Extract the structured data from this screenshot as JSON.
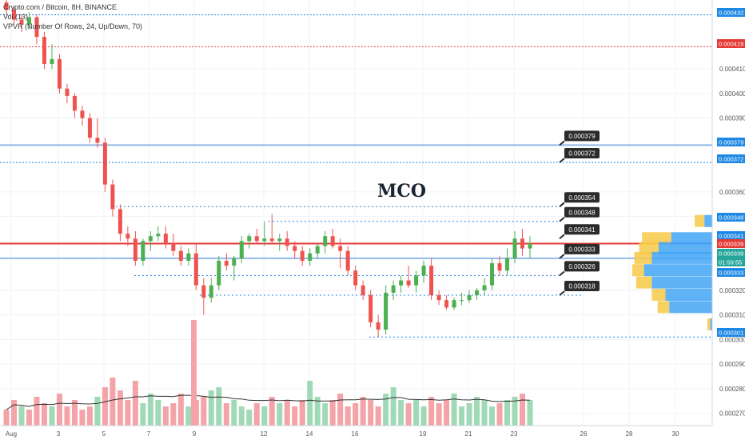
{
  "header": {
    "symbol_line": "Crypto.com / Bitcoin, 8H, BINANCE",
    "vol_line": "Vol (13)",
    "vpvr_line": "VPVR (Number Of Rows, 24, Up/Down, 70)"
  },
  "annotation": "MCO",
  "colors": {
    "up": "#4caf50",
    "down": "#ef5350",
    "vol_up": "#9fd9b5",
    "vol_down": "#f4a3a8",
    "level_blue": "#1e88e5",
    "level_red": "#e53935",
    "vpvr_blue": "#42a5f5",
    "vpvr_yellow": "#f7c948"
  },
  "chart_data": {
    "type": "candlestick",
    "title": "Crypto.com / Bitcoin, 8H, BINANCE",
    "x_tick_labels": [
      "Aug",
      "3",
      "5",
      "7",
      "9",
      "12",
      "14",
      "16",
      "19",
      "21",
      "23",
      "26",
      "28",
      "30"
    ],
    "y_tick_labels": [
      "0.000270",
      "0.000280",
      "0.000290",
      "0.000300",
      "0.000310",
      "0.000320",
      "0.000350",
      "0.000360",
      "0.000390",
      "0.000400",
      "0.000410"
    ],
    "ylim": [
      0.000265,
      0.000438
    ],
    "grid": true,
    "candles": [
      [
        0.000437,
        0.000439,
        0.000432,
        0.000434
      ],
      [
        0.000434,
        0.000435,
        0.000428,
        0.00043
      ],
      [
        0.00043,
        0.000432,
        0.000425,
        0.000428
      ],
      [
        0.000428,
        0.000433,
        0.000426,
        0.000431
      ],
      [
        0.000431,
        0.000432,
        0.00042,
        0.000423
      ],
      [
        0.000423,
        0.000425,
        0.00041,
        0.000412
      ],
      [
        0.000412,
        0.00042,
        0.00041,
        0.000414
      ],
      [
        0.000414,
        0.000416,
        0.0004,
        0.000402
      ],
      [
        0.000402,
        0.000404,
        0.000396,
        0.000399
      ],
      [
        0.000399,
        0.0004,
        0.00039,
        0.000393
      ],
      [
        0.000393,
        0.000395,
        0.000387,
        0.00039
      ],
      [
        0.00039,
        0.000392,
        0.00038,
        0.000382
      ],
      [
        0.000382,
        0.00039,
        0.000378,
        0.00038
      ],
      [
        0.00038,
        0.000382,
        0.00036,
        0.000363
      ],
      [
        0.000363,
        0.000365,
        0.00035,
        0.000353
      ],
      [
        0.000353,
        0.000355,
        0.00034,
        0.000343
      ],
      [
        0.000343,
        0.000346,
        0.000338,
        0.000341
      ],
      [
        0.000341,
        0.000344,
        0.00033,
        0.000332
      ],
      [
        0.000332,
        0.000341,
        0.00033,
        0.00034
      ],
      [
        0.00034,
        0.000344,
        0.000336,
        0.000342
      ],
      [
        0.000342,
        0.000346,
        0.00034,
        0.000343
      ],
      [
        0.000343,
        0.000346,
        0.000337,
        0.000339
      ],
      [
        0.000339,
        0.000343,
        0.000334,
        0.000336
      ],
      [
        0.000336,
        0.000338,
        0.00033,
        0.000332
      ],
      [
        0.000332,
        0.000337,
        0.00033,
        0.000335
      ],
      [
        0.000335,
        0.000339,
        0.00032,
        0.000322
      ],
      [
        0.000322,
        0.000325,
        0.00031,
        0.000317
      ],
      [
        0.000317,
        0.000325,
        0.000315,
        0.000322
      ],
      [
        0.000322,
        0.000334,
        0.00032,
        0.000332
      ],
      [
        0.000332,
        0.000335,
        0.000328,
        0.00033
      ],
      [
        0.00033,
        0.000334,
        0.000324,
        0.000333
      ],
      [
        0.000333,
        0.000342,
        0.000331,
        0.00034
      ],
      [
        0.00034,
        0.000343,
        0.000337,
        0.000342
      ],
      [
        0.000342,
        0.000345,
        0.000339,
        0.00034
      ],
      [
        0.00034,
        0.000348,
        0.000338,
        0.000341
      ],
      [
        0.000341,
        0.000351,
        0.000339,
        0.00034
      ],
      [
        0.00034,
        0.000343,
        0.000336,
        0.000341
      ],
      [
        0.000341,
        0.000344,
        0.000336,
        0.000338
      ],
      [
        0.000338,
        0.00034,
        0.000333,
        0.000336
      ],
      [
        0.000336,
        0.000338,
        0.00033,
        0.000332
      ],
      [
        0.000332,
        0.000337,
        0.00033,
        0.000335
      ],
      [
        0.000335,
        0.000339,
        0.000333,
        0.000338
      ],
      [
        0.000338,
        0.000344,
        0.000335,
        0.000342
      ],
      [
        0.000342,
        0.000345,
        0.000337,
        0.000338
      ],
      [
        0.000338,
        0.000341,
        0.000329,
        0.000336
      ],
      [
        0.000336,
        0.000338,
        0.000326,
        0.000328
      ],
      [
        0.000328,
        0.00033,
        0.00032,
        0.000322
      ],
      [
        0.000322,
        0.000324,
        0.000316,
        0.000318
      ],
      [
        0.000318,
        0.00032,
        0.000305,
        0.000307
      ],
      [
        0.000307,
        0.00031,
        0.000301,
        0.000304
      ],
      [
        0.000304,
        0.000322,
        0.000302,
        0.000319
      ],
      [
        0.000319,
        0.000324,
        0.000316,
        0.000322
      ],
      [
        0.000322,
        0.000326,
        0.000319,
        0.000324
      ],
      [
        0.000324,
        0.00033,
        0.000321,
        0.000322
      ],
      [
        0.000322,
        0.000328,
        0.000319,
        0.000326
      ],
      [
        0.000326,
        0.000332,
        0.000323,
        0.00033
      ],
      [
        0.00033,
        0.000333,
        0.000316,
        0.000318
      ],
      [
        0.000318,
        0.00032,
        0.000314,
        0.000316
      ],
      [
        0.000316,
        0.000318,
        0.000312,
        0.000313
      ],
      [
        0.000313,
        0.000317,
        0.000312,
        0.000316
      ],
      [
        0.000316,
        0.000319,
        0.000314,
        0.000316
      ],
      [
        0.000316,
        0.00032,
        0.000315,
        0.000318
      ],
      [
        0.000318,
        0.000321,
        0.000316,
        0.00032
      ],
      [
        0.00032,
        0.000325,
        0.000318,
        0.000322
      ],
      [
        0.000322,
        0.000333,
        0.00032,
        0.000331
      ],
      [
        0.000331,
        0.000334,
        0.000326,
        0.000328
      ],
      [
        0.000328,
        0.000337,
        0.000326,
        0.000333
      ],
      [
        0.000333,
        0.000344,
        0.000331,
        0.000341
      ],
      [
        0.000341,
        0.000345,
        0.000334,
        0.000337
      ],
      [
        0.000337,
        0.000342,
        0.000333,
        0.000339
      ]
    ],
    "volumes": [
      5,
      8,
      6,
      5,
      9,
      7,
      6,
      10,
      6,
      8,
      5,
      6,
      9,
      12,
      15,
      11,
      8,
      14,
      7,
      10,
      8,
      6,
      7,
      10,
      6,
      8,
      9,
      11,
      12,
      7,
      8,
      6,
      5,
      7,
      6,
      9,
      7,
      8,
      6,
      8,
      14,
      9,
      7,
      8,
      10,
      6,
      7,
      9,
      8,
      6,
      10,
      12,
      8,
      7,
      8,
      6,
      9,
      7,
      8,
      10,
      6,
      7,
      9,
      8,
      6,
      7,
      8,
      9,
      10,
      8
    ],
    "volume_up": [
      false,
      false,
      true,
      false,
      false,
      false,
      true,
      false,
      false,
      false,
      false,
      false,
      true,
      false,
      false,
      false,
      false,
      false,
      true,
      true,
      true,
      false,
      false,
      false,
      true,
      false,
      false,
      true,
      true,
      false,
      true,
      true,
      true,
      false,
      true,
      false,
      true,
      false,
      false,
      false,
      true,
      true,
      true,
      false,
      false,
      false,
      false,
      false,
      false,
      false,
      true,
      true,
      true,
      false,
      true,
      true,
      false,
      false,
      false,
      true,
      true,
      true,
      true,
      true,
      true,
      false,
      true,
      true,
      false,
      true
    ],
    "price_labels": [
      "0.000379",
      "0.000372",
      "0.000354",
      "0.000348",
      "0.000341",
      "0.000333",
      "0.000326",
      "0.000318"
    ],
    "axis_badges": [
      {
        "text": "0.000432",
        "color": "#1e88e5"
      },
      {
        "text": "0.000419",
        "color": "#e53935"
      },
      {
        "text": "0.000379",
        "color": "#1e88e5"
      },
      {
        "text": "0.000372",
        "color": "#1e88e5"
      },
      {
        "text": "0.000348",
        "color": "#1e88e5"
      },
      {
        "text": "0.000341",
        "color": "#1e88e5"
      },
      {
        "text": "0.000339",
        "color": "#e53935"
      },
      {
        "text": "0.000339",
        "color": "#26a69a"
      },
      {
        "text": "01:59:55",
        "color": "#26a69a"
      },
      {
        "text": "0.000333",
        "color": "#1e88e5"
      },
      {
        "text": "0.000301",
        "color": "#1e88e5"
      }
    ],
    "horizontal_levels": [
      {
        "value": 0.000379,
        "style": "solid",
        "color": "#90b8e8"
      },
      {
        "value": 0.000372,
        "style": "dashed",
        "color": "#1e88e5"
      },
      {
        "value": 0.000419,
        "style": "dashed",
        "color": "#e53935"
      },
      {
        "value": 0.000432,
        "style": "dashed",
        "color": "#1e88e5"
      },
      {
        "value": 0.000339,
        "style": "solid",
        "color": "#e53935"
      },
      {
        "value": 0.000333,
        "style": "solid",
        "color": "#90b8e8"
      }
    ],
    "vpvr_rows": [
      {
        "value": 0.000348,
        "up": 8,
        "down": 10
      },
      {
        "value": 0.000341,
        "up": 42,
        "down": 30
      },
      {
        "value": 0.000337,
        "up": 55,
        "down": 20
      },
      {
        "value": 0.000333,
        "up": 62,
        "down": 18
      },
      {
        "value": 0.000328,
        "up": 70,
        "down": 12
      },
      {
        "value": 0.000323,
        "up": 62,
        "down": 16
      },
      {
        "value": 0.000318,
        "up": 48,
        "down": 14
      },
      {
        "value": 0.000313,
        "up": 44,
        "down": 12
      },
      {
        "value": 0.000306,
        "up": 2,
        "down": 3
      }
    ]
  }
}
